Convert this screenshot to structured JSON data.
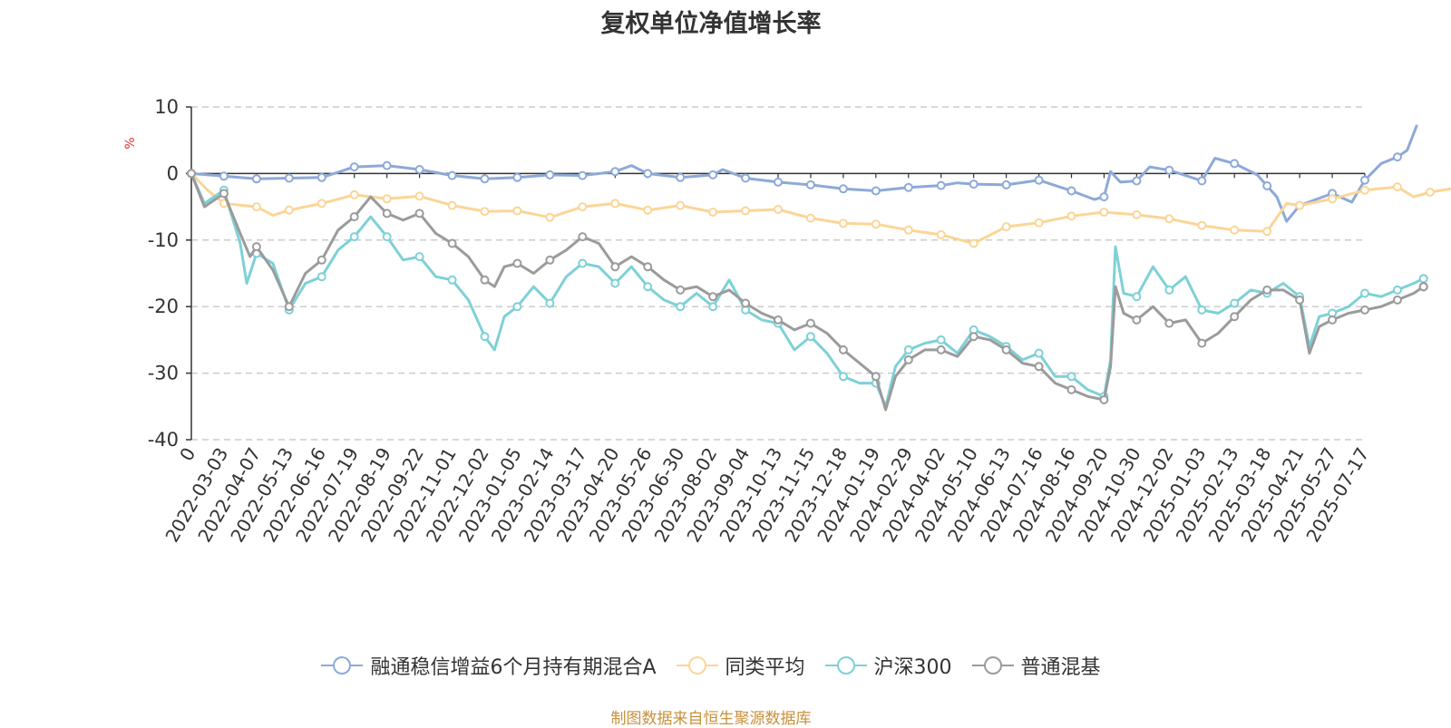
{
  "chart_data": {
    "type": "line",
    "title": "复权单位净值增长率",
    "ylabel": "%",
    "ylim": [
      -40,
      10
    ],
    "yticks": [
      10,
      0,
      -10,
      -20,
      -30,
      -40
    ],
    "xlabels": [
      "0",
      "2022-03-03",
      "2022-04-07",
      "2022-05-13",
      "2022-06-16",
      "2022-07-19",
      "2022-08-19",
      "2022-09-22",
      "2022-11-01",
      "2022-12-02",
      "2023-01-05",
      "2023-02-14",
      "2023-03-17",
      "2023-04-20",
      "2023-05-26",
      "2023-06-30",
      "2023-08-02",
      "2023-09-04",
      "2023-10-13",
      "2023-11-15",
      "2023-12-18",
      "2024-01-19",
      "2024-02-29",
      "2024-04-02",
      "2024-05-10",
      "2024-06-13",
      "2024-07-16",
      "2024-08-16",
      "2024-09-20",
      "2024-10-30",
      "2024-12-02",
      "2025-01-03",
      "2025-02-13",
      "2025-03-18",
      "2025-04-21",
      "2025-05-27",
      "2025-07-17"
    ],
    "grid": true,
    "legend_position": "bottom",
    "series": [
      {
        "name": "融通稳信增益6个月持有期混合A",
        "color": "#8da9d8",
        "points": [
          [
            0,
            0
          ],
          [
            1,
            -0.4
          ],
          [
            2,
            -0.8
          ],
          [
            3,
            -0.7
          ],
          [
            4,
            -0.6
          ],
          [
            4.5,
            0.2
          ],
          [
            5,
            1.0
          ],
          [
            6,
            1.2
          ],
          [
            7,
            0.6
          ],
          [
            8,
            -0.3
          ],
          [
            9,
            -0.8
          ],
          [
            10,
            -0.6
          ],
          [
            11,
            -0.2
          ],
          [
            12,
            -0.3
          ],
          [
            13,
            0.3
          ],
          [
            13.5,
            1.2
          ],
          [
            14,
            0
          ],
          [
            15,
            -0.6
          ],
          [
            16,
            -0.2
          ],
          [
            16.3,
            0.6
          ],
          [
            17,
            -0.7
          ],
          [
            18,
            -1.3
          ],
          [
            19,
            -1.7
          ],
          [
            20,
            -2.3
          ],
          [
            21,
            -2.6
          ],
          [
            22,
            -2.1
          ],
          [
            23,
            -1.8
          ],
          [
            23.5,
            -1.4
          ],
          [
            24,
            -1.6
          ],
          [
            25,
            -1.7
          ],
          [
            26,
            -1.0
          ],
          [
            27,
            -2.6
          ],
          [
            27.7,
            -3.9
          ],
          [
            28,
            -3.5
          ],
          [
            28.2,
            0.3
          ],
          [
            28.5,
            -1.3
          ],
          [
            29,
            -1.1
          ],
          [
            29.4,
            1.0
          ],
          [
            30,
            0.5
          ],
          [
            31,
            -1.1
          ],
          [
            31.4,
            2.3
          ],
          [
            32,
            1.5
          ],
          [
            32.7,
            -0.2
          ],
          [
            33.3,
            -3.5
          ],
          [
            33.6,
            -7.2
          ],
          [
            34,
            -4.8
          ],
          [
            35,
            -3.0
          ],
          [
            35.6,
            -4.3
          ],
          [
            36,
            -1.0
          ],
          [
            36.5,
            1.5
          ],
          [
            37,
            2.5
          ],
          [
            37.3,
            3.5
          ],
          [
            37.6,
            7.3
          ]
        ],
        "markers": [
          0,
          1,
          2,
          3,
          4,
          5,
          6,
          7,
          8,
          9,
          10,
          11,
          12,
          13,
          14,
          15,
          16,
          17,
          18,
          19,
          20,
          21,
          22,
          23,
          24,
          25,
          26,
          27,
          28,
          29,
          30,
          31,
          32,
          33,
          34,
          35,
          36,
          37
        ]
      },
      {
        "name": "同类平均",
        "color": "#fbd597",
        "points": [
          [
            0,
            0
          ],
          [
            0.5,
            -2.5
          ],
          [
            1,
            -4.5
          ],
          [
            2,
            -5.0
          ],
          [
            2.5,
            -6.3
          ],
          [
            3,
            -5.5
          ],
          [
            4,
            -4.5
          ],
          [
            5,
            -3.2
          ],
          [
            6,
            -3.8
          ],
          [
            7,
            -3.4
          ],
          [
            8,
            -4.8
          ],
          [
            9,
            -5.7
          ],
          [
            10,
            -5.6
          ],
          [
            11,
            -6.6
          ],
          [
            12,
            -5.0
          ],
          [
            13,
            -4.5
          ],
          [
            14,
            -5.5
          ],
          [
            15,
            -4.8
          ],
          [
            16,
            -5.8
          ],
          [
            17,
            -5.6
          ],
          [
            18,
            -5.4
          ],
          [
            19,
            -6.7
          ],
          [
            20,
            -7.5
          ],
          [
            21,
            -7.6
          ],
          [
            22,
            -8.5
          ],
          [
            23,
            -9.2
          ],
          [
            24,
            -10.5
          ],
          [
            25,
            -8.0
          ],
          [
            26,
            -7.4
          ],
          [
            27,
            -6.4
          ],
          [
            28,
            -5.8
          ],
          [
            29,
            -6.2
          ],
          [
            30,
            -6.8
          ],
          [
            31,
            -7.8
          ],
          [
            32,
            -8.5
          ],
          [
            33,
            -8.7
          ],
          [
            33.6,
            -4.5
          ],
          [
            34,
            -4.8
          ],
          [
            35,
            -3.8
          ],
          [
            36,
            -2.5
          ],
          [
            37,
            -2.0
          ],
          [
            37.5,
            -3.5
          ],
          [
            38,
            -2.8
          ],
          [
            39,
            -2.0
          ],
          [
            40,
            -1.5
          ],
          [
            40.5,
            -0.5
          ]
        ],
        "markers": [
          0,
          1,
          2,
          3,
          4,
          5,
          6,
          7,
          8,
          9,
          10,
          11,
          12,
          13,
          14,
          15,
          16,
          17,
          18,
          19,
          20,
          21,
          22,
          23,
          24,
          25,
          26,
          27,
          28,
          29,
          30,
          31,
          32,
          33,
          34,
          35,
          36,
          37,
          38,
          39,
          40,
          41
        ]
      },
      {
        "name": "沪深300",
        "color": "#7dd1d7",
        "points": [
          [
            0,
            0
          ],
          [
            0.4,
            -4.5
          ],
          [
            1,
            -2.5
          ],
          [
            1.5,
            -10.5
          ],
          [
            1.7,
            -16.5
          ],
          [
            2,
            -12.0
          ],
          [
            2.5,
            -13.5
          ],
          [
            3,
            -20.5
          ],
          [
            3.5,
            -16.5
          ],
          [
            4,
            -15.5
          ],
          [
            4.5,
            -11.5
          ],
          [
            5,
            -9.5
          ],
          [
            5.5,
            -6.5
          ],
          [
            6,
            -9.5
          ],
          [
            6.5,
            -13.0
          ],
          [
            7,
            -12.5
          ],
          [
            7.5,
            -15.5
          ],
          [
            8,
            -16.0
          ],
          [
            8.5,
            -19.0
          ],
          [
            9,
            -24.5
          ],
          [
            9.3,
            -26.5
          ],
          [
            9.6,
            -21.5
          ],
          [
            10,
            -20.0
          ],
          [
            10.5,
            -17.0
          ],
          [
            11,
            -19.5
          ],
          [
            11.5,
            -15.5
          ],
          [
            12,
            -13.5
          ],
          [
            12.5,
            -14.0
          ],
          [
            13,
            -16.5
          ],
          [
            13.5,
            -14.0
          ],
          [
            14,
            -17.0
          ],
          [
            14.5,
            -19.0
          ],
          [
            15,
            -20.0
          ],
          [
            15.5,
            -18.0
          ],
          [
            16,
            -20.0
          ],
          [
            16.5,
            -16.0
          ],
          [
            17,
            -20.5
          ],
          [
            17.5,
            -22.0
          ],
          [
            18,
            -22.5
          ],
          [
            18.5,
            -26.5
          ],
          [
            19,
            -24.5
          ],
          [
            19.5,
            -27.0
          ],
          [
            20,
            -30.5
          ],
          [
            20.5,
            -31.5
          ],
          [
            21,
            -31.5
          ],
          [
            21.3,
            -35.0
          ],
          [
            21.6,
            -29.0
          ],
          [
            22,
            -26.5
          ],
          [
            22.5,
            -25.5
          ],
          [
            23,
            -25.0
          ],
          [
            23.5,
            -27.0
          ],
          [
            24,
            -23.5
          ],
          [
            24.5,
            -24.5
          ],
          [
            25,
            -26.0
          ],
          [
            25.5,
            -28.0
          ],
          [
            26,
            -27.0
          ],
          [
            26.5,
            -30.5
          ],
          [
            27,
            -30.5
          ],
          [
            27.5,
            -32.5
          ],
          [
            28,
            -33.5
          ],
          [
            28.2,
            -28.0
          ],
          [
            28.35,
            -11.0
          ],
          [
            28.6,
            -18.0
          ],
          [
            29,
            -18.5
          ],
          [
            29.5,
            -14.0
          ],
          [
            30,
            -17.5
          ],
          [
            30.5,
            -15.5
          ],
          [
            31,
            -20.5
          ],
          [
            31.5,
            -21.0
          ],
          [
            32,
            -19.5
          ],
          [
            32.5,
            -17.5
          ],
          [
            33,
            -18.0
          ],
          [
            33.5,
            -16.5
          ],
          [
            34,
            -18.5
          ],
          [
            34.3,
            -26.0
          ],
          [
            34.6,
            -21.5
          ],
          [
            35,
            -21.0
          ],
          [
            35.5,
            -20.0
          ],
          [
            36,
            -18.0
          ],
          [
            36.5,
            -18.5
          ],
          [
            37,
            -17.5
          ],
          [
            37.5,
            -16.5
          ],
          [
            37.8,
            -15.8
          ]
        ],
        "markers": [
          0,
          1,
          2,
          3,
          4,
          5,
          6,
          7,
          8,
          9,
          10,
          11,
          12,
          13,
          14,
          15,
          16,
          17,
          18,
          19,
          20,
          21,
          22,
          23,
          24,
          25,
          26,
          27,
          28,
          29,
          30,
          31,
          32,
          33,
          34,
          35,
          36,
          37,
          38,
          39,
          40,
          41
        ]
      },
      {
        "name": "普通混基",
        "color": "#9b9b9b",
        "points": [
          [
            0,
            0
          ],
          [
            0.4,
            -5.0
          ],
          [
            1,
            -3.0
          ],
          [
            1.5,
            -9.0
          ],
          [
            1.8,
            -12.5
          ],
          [
            2,
            -11.0
          ],
          [
            2.5,
            -14.5
          ],
          [
            3,
            -20.0
          ],
          [
            3.5,
            -15.0
          ],
          [
            4,
            -13.0
          ],
          [
            4.5,
            -8.5
          ],
          [
            5,
            -6.5
          ],
          [
            5.5,
            -3.5
          ],
          [
            6,
            -6.0
          ],
          [
            6.5,
            -7.0
          ],
          [
            7,
            -6.0
          ],
          [
            7.5,
            -9.0
          ],
          [
            8,
            -10.5
          ],
          [
            8.5,
            -12.5
          ],
          [
            9,
            -16.0
          ],
          [
            9.3,
            -17.0
          ],
          [
            9.6,
            -14.0
          ],
          [
            10,
            -13.5
          ],
          [
            10.5,
            -15.0
          ],
          [
            11,
            -13.0
          ],
          [
            11.5,
            -11.5
          ],
          [
            12,
            -9.5
          ],
          [
            12.5,
            -10.5
          ],
          [
            13,
            -14.0
          ],
          [
            13.5,
            -12.5
          ],
          [
            14,
            -14.0
          ],
          [
            14.5,
            -16.0
          ],
          [
            15,
            -17.5
          ],
          [
            15.5,
            -17.0
          ],
          [
            16,
            -18.5
          ],
          [
            16.5,
            -17.5
          ],
          [
            17,
            -19.5
          ],
          [
            17.5,
            -21.0
          ],
          [
            18,
            -22.0
          ],
          [
            18.5,
            -23.5
          ],
          [
            19,
            -22.5
          ],
          [
            19.5,
            -24.0
          ],
          [
            20,
            -26.5
          ],
          [
            20.5,
            -28.5
          ],
          [
            21,
            -30.5
          ],
          [
            21.3,
            -35.5
          ],
          [
            21.6,
            -30.5
          ],
          [
            22,
            -28.0
          ],
          [
            22.5,
            -26.5
          ],
          [
            23,
            -26.5
          ],
          [
            23.5,
            -27.5
          ],
          [
            24,
            -24.5
          ],
          [
            24.5,
            -25.0
          ],
          [
            25,
            -26.5
          ],
          [
            25.5,
            -28.5
          ],
          [
            26,
            -29.0
          ],
          [
            26.5,
            -31.5
          ],
          [
            27,
            -32.5
          ],
          [
            27.5,
            -33.5
          ],
          [
            28,
            -34.0
          ],
          [
            28.2,
            -29.0
          ],
          [
            28.35,
            -17.0
          ],
          [
            28.6,
            -21.0
          ],
          [
            29,
            -22.0
          ],
          [
            29.5,
            -20.0
          ],
          [
            30,
            -22.5
          ],
          [
            30.5,
            -22.0
          ],
          [
            31,
            -25.5
          ],
          [
            31.5,
            -24.0
          ],
          [
            32,
            -21.5
          ],
          [
            32.5,
            -19.0
          ],
          [
            33,
            -17.5
          ],
          [
            33.5,
            -17.5
          ],
          [
            34,
            -19.0
          ],
          [
            34.3,
            -27.0
          ],
          [
            34.6,
            -23.0
          ],
          [
            35,
            -22.0
          ],
          [
            35.5,
            -21.0
          ],
          [
            36,
            -20.5
          ],
          [
            36.5,
            -20.0
          ],
          [
            37,
            -19.0
          ],
          [
            37.5,
            -18.0
          ],
          [
            37.8,
            -17.0
          ]
        ],
        "markers": [
          0,
          1,
          2,
          3,
          4,
          5,
          6,
          7,
          8,
          9,
          10,
          11,
          12,
          13,
          14,
          15,
          16,
          17,
          18,
          19,
          20,
          21,
          22,
          23,
          24,
          25,
          26,
          27,
          28,
          29,
          30,
          31,
          32,
          33,
          34,
          35,
          36,
          37,
          38,
          39,
          40,
          41
        ]
      }
    ]
  },
  "footer": "制图数据来自恒生聚源数据库"
}
